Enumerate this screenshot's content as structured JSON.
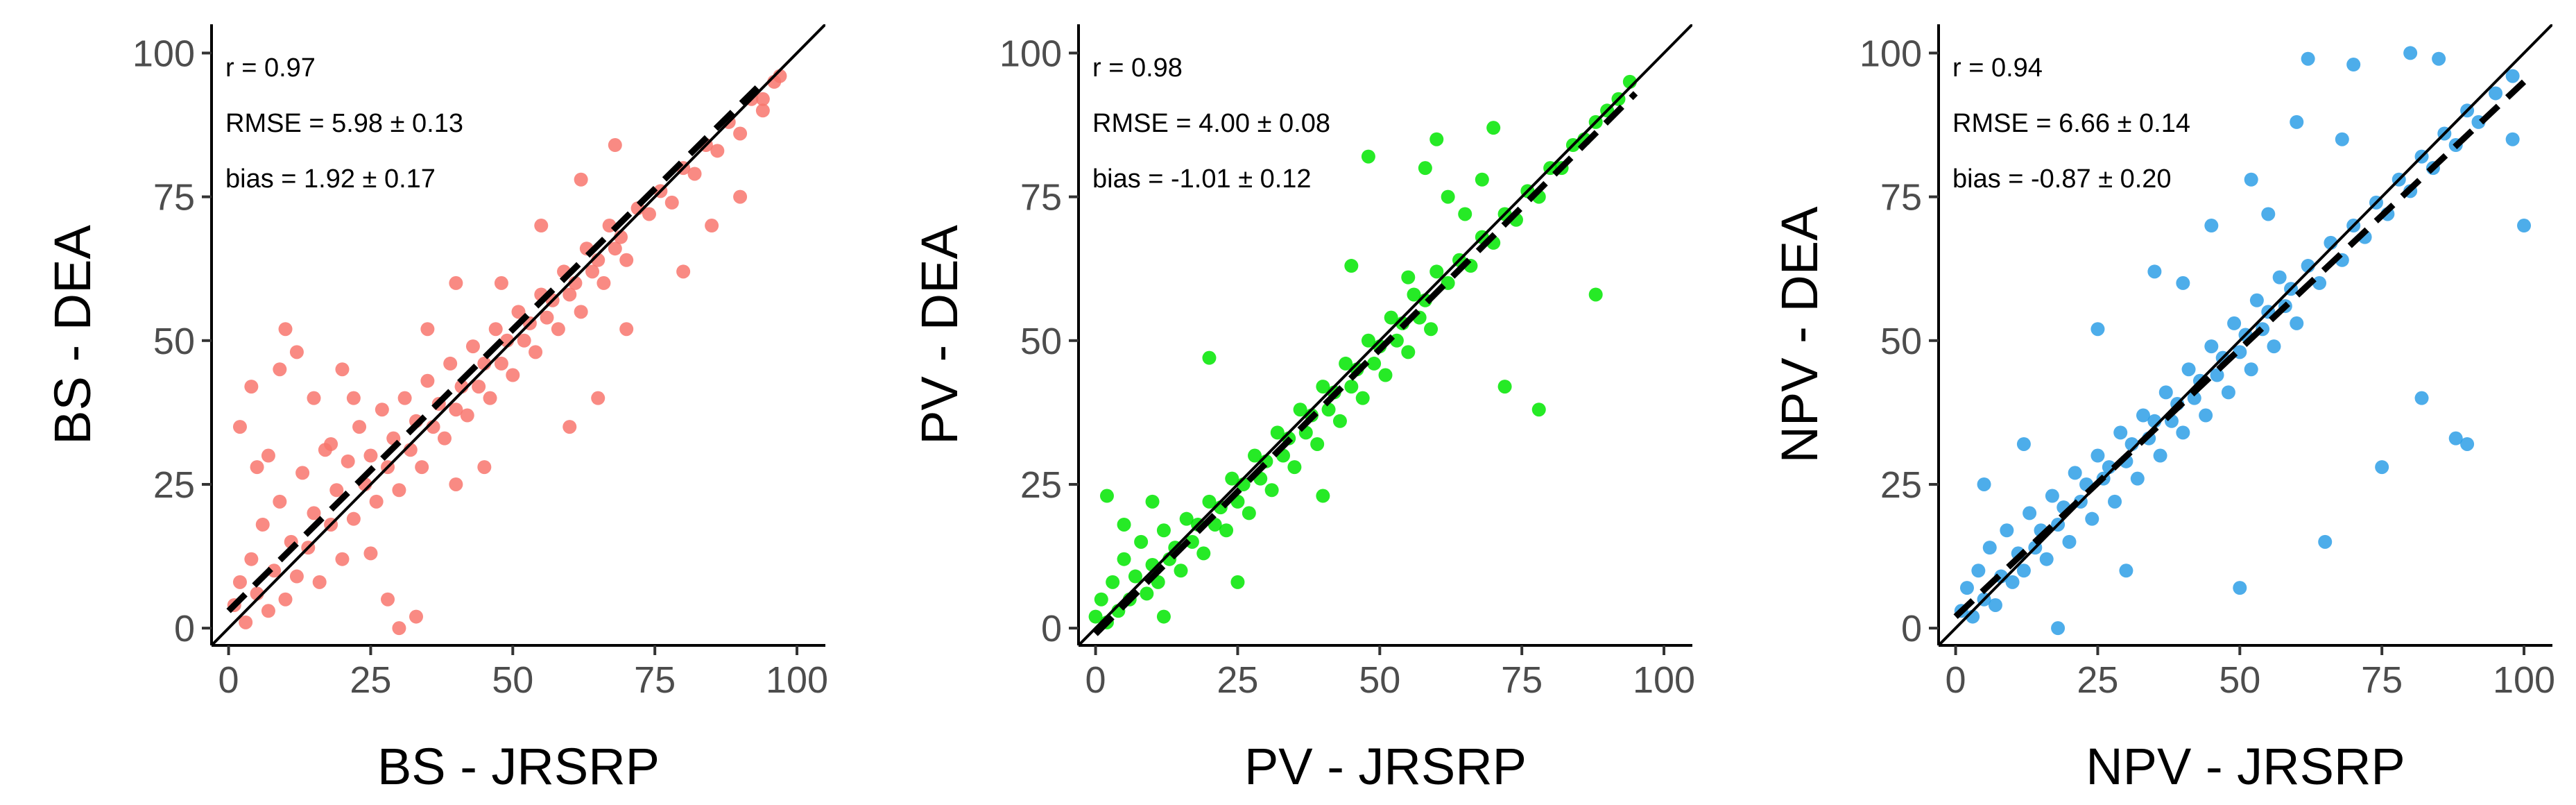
{
  "chart_data": [
    {
      "type": "scatter",
      "panel": "left",
      "xlabel": "BS - JRSRP",
      "ylabel": "BS - DEA",
      "xlim": [
        -3,
        105
      ],
      "ylim": [
        -3,
        105
      ],
      "xticks": [
        0,
        25,
        50,
        75,
        100
      ],
      "yticks": [
        0,
        25,
        50,
        75,
        100
      ],
      "point_color": "#F8766D",
      "stats": [
        "r = 0.97",
        "RMSE = 5.98 ± 0.13",
        "bias = 1.92 ± 0.17"
      ],
      "one_to_one_line": {
        "x": [
          -3,
          105
        ],
        "y": [
          -3,
          105
        ]
      },
      "fit_line": {
        "x": [
          0,
          93
        ],
        "y": [
          3.0,
          94.0
        ]
      },
      "points": [
        [
          1,
          4
        ],
        [
          2,
          8
        ],
        [
          3,
          1
        ],
        [
          4,
          12
        ],
        [
          5,
          6
        ],
        [
          6,
          18
        ],
        [
          7,
          3
        ],
        [
          8,
          10
        ],
        [
          9,
          22
        ],
        [
          10,
          5
        ],
        [
          11,
          15
        ],
        [
          12,
          9
        ],
        [
          13,
          27
        ],
        [
          14,
          14
        ],
        [
          15,
          20
        ],
        [
          16,
          8
        ],
        [
          17,
          31
        ],
        [
          18,
          18
        ],
        [
          19,
          24
        ],
        [
          20,
          12
        ],
        [
          21,
          29
        ],
        [
          22,
          19
        ],
        [
          23,
          35
        ],
        [
          24,
          25
        ],
        [
          25,
          30
        ],
        [
          26,
          22
        ],
        [
          27,
          38
        ],
        [
          28,
          28
        ],
        [
          29,
          33
        ],
        [
          30,
          24
        ],
        [
          31,
          40
        ],
        [
          32,
          31
        ],
        [
          33,
          36
        ],
        [
          34,
          28
        ],
        [
          35,
          43
        ],
        [
          36,
          35
        ],
        [
          37,
          39
        ],
        [
          38,
          33
        ],
        [
          39,
          46
        ],
        [
          40,
          38
        ],
        [
          41,
          42
        ],
        [
          42,
          37
        ],
        [
          43,
          49
        ],
        [
          44,
          42
        ],
        [
          45,
          46
        ],
        [
          46,
          40
        ],
        [
          47,
          52
        ],
        [
          48,
          46
        ],
        [
          49,
          50
        ],
        [
          50,
          44
        ],
        [
          51,
          55
        ],
        [
          52,
          50
        ],
        [
          53,
          53
        ],
        [
          54,
          48
        ],
        [
          55,
          58
        ],
        [
          56,
          54
        ],
        [
          57,
          57
        ],
        [
          58,
          52
        ],
        [
          59,
          62
        ],
        [
          60,
          58
        ],
        [
          61,
          60
        ],
        [
          62,
          55
        ],
        [
          63,
          66
        ],
        [
          64,
          62
        ],
        [
          65,
          64
        ],
        [
          66,
          60
        ],
        [
          67,
          70
        ],
        [
          68,
          66
        ],
        [
          69,
          68
        ],
        [
          70,
          64
        ],
        [
          72,
          73
        ],
        [
          74,
          72
        ],
        [
          76,
          76
        ],
        [
          78,
          74
        ],
        [
          80,
          80
        ],
        [
          82,
          79
        ],
        [
          84,
          84
        ],
        [
          86,
          83
        ],
        [
          88,
          88
        ],
        [
          90,
          86
        ],
        [
          92,
          92
        ],
        [
          94,
          90
        ],
        [
          96,
          95
        ],
        [
          2,
          35
        ],
        [
          4,
          42
        ],
        [
          7,
          30
        ],
        [
          9,
          45
        ],
        [
          12,
          48
        ],
        [
          5,
          28
        ],
        [
          15,
          40
        ],
        [
          10,
          52
        ],
        [
          20,
          45
        ],
        [
          25,
          13
        ],
        [
          30,
          0
        ],
        [
          33,
          2
        ],
        [
          28,
          5
        ],
        [
          40,
          25
        ],
        [
          45,
          28
        ],
        [
          60,
          35
        ],
        [
          65,
          40
        ],
        [
          70,
          52
        ],
        [
          80,
          62
        ],
        [
          85,
          70
        ],
        [
          90,
          75
        ],
        [
          94,
          92
        ],
        [
          97,
          96
        ],
        [
          62,
          78
        ],
        [
          68,
          84
        ],
        [
          55,
          70
        ],
        [
          48,
          60
        ],
        [
          35,
          52
        ],
        [
          40,
          60
        ],
        [
          22,
          40
        ],
        [
          18,
          32
        ]
      ]
    },
    {
      "type": "scatter",
      "panel": "middle",
      "xlabel": "PV - JRSRP",
      "ylabel": "PV - DEA",
      "xlim": [
        -3,
        105
      ],
      "ylim": [
        -3,
        105
      ],
      "xticks": [
        0,
        25,
        50,
        75,
        100
      ],
      "yticks": [
        0,
        25,
        50,
        75,
        100
      ],
      "point_color": "#00E600",
      "stats": [
        "r = 0.98",
        "RMSE = 4.00 ± 0.08",
        "bias = -1.01 ± 0.12"
      ],
      "one_to_one_line": {
        "x": [
          -3,
          105
        ],
        "y": [
          -3,
          105
        ]
      },
      "fit_line": {
        "x": [
          0,
          95
        ],
        "y": [
          -1.0,
          93.0
        ]
      },
      "points": [
        [
          0,
          2
        ],
        [
          1,
          5
        ],
        [
          2,
          1
        ],
        [
          3,
          8
        ],
        [
          4,
          3
        ],
        [
          5,
          12
        ],
        [
          6,
          5
        ],
        [
          7,
          9
        ],
        [
          8,
          15
        ],
        [
          9,
          6
        ],
        [
          10,
          11
        ],
        [
          11,
          8
        ],
        [
          12,
          17
        ],
        [
          13,
          12
        ],
        [
          14,
          14
        ],
        [
          15,
          10
        ],
        [
          16,
          19
        ],
        [
          17,
          15
        ],
        [
          18,
          18
        ],
        [
          19,
          13
        ],
        [
          20,
          22
        ],
        [
          21,
          18
        ],
        [
          22,
          21
        ],
        [
          23,
          17
        ],
        [
          24,
          26
        ],
        [
          25,
          22
        ],
        [
          26,
          25
        ],
        [
          27,
          20
        ],
        [
          28,
          30
        ],
        [
          29,
          26
        ],
        [
          30,
          29
        ],
        [
          31,
          24
        ],
        [
          32,
          34
        ],
        [
          33,
          30
        ],
        [
          34,
          33
        ],
        [
          35,
          28
        ],
        [
          36,
          38
        ],
        [
          37,
          34
        ],
        [
          38,
          37
        ],
        [
          39,
          32
        ],
        [
          40,
          42
        ],
        [
          41,
          38
        ],
        [
          42,
          41
        ],
        [
          43,
          36
        ],
        [
          44,
          46
        ],
        [
          45,
          42
        ],
        [
          46,
          45
        ],
        [
          47,
          40
        ],
        [
          48,
          50
        ],
        [
          49,
          46
        ],
        [
          50,
          49
        ],
        [
          51,
          44
        ],
        [
          52,
          54
        ],
        [
          53,
          50
        ],
        [
          54,
          53
        ],
        [
          55,
          48
        ],
        [
          56,
          58
        ],
        [
          57,
          54
        ],
        [
          58,
          57
        ],
        [
          59,
          52
        ],
        [
          60,
          62
        ],
        [
          62,
          60
        ],
        [
          64,
          64
        ],
        [
          66,
          63
        ],
        [
          68,
          68
        ],
        [
          70,
          67
        ],
        [
          72,
          72
        ],
        [
          74,
          71
        ],
        [
          76,
          76
        ],
        [
          78,
          75
        ],
        [
          80,
          80
        ],
        [
          82,
          80
        ],
        [
          84,
          84
        ],
        [
          86,
          85
        ],
        [
          88,
          88
        ],
        [
          90,
          90
        ],
        [
          92,
          92
        ],
        [
          94,
          95
        ],
        [
          20,
          47
        ],
        [
          10,
          22
        ],
        [
          5,
          18
        ],
        [
          2,
          23
        ],
        [
          12,
          2
        ],
        [
          25,
          8
        ],
        [
          40,
          23
        ],
        [
          45,
          63
        ],
        [
          48,
          82
        ],
        [
          60,
          85
        ],
        [
          62,
          75
        ],
        [
          72,
          42
        ],
        [
          78,
          38
        ],
        [
          88,
          58
        ],
        [
          55,
          61
        ],
        [
          58,
          80
        ],
        [
          65,
          72
        ],
        [
          68,
          78
        ],
        [
          70,
          87
        ]
      ]
    },
    {
      "type": "scatter",
      "panel": "right",
      "xlabel": "NPV - JRSRP",
      "ylabel": "NPV - DEA",
      "xlim": [
        -3,
        105
      ],
      "ylim": [
        -3,
        105
      ],
      "xticks": [
        0,
        25,
        50,
        75,
        100
      ],
      "yticks": [
        0,
        25,
        50,
        75,
        100
      ],
      "point_color": "#2E9FE6",
      "stats": [
        "r = 0.94",
        "RMSE = 6.66 ± 0.14",
        "bias = -0.87 ± 0.20"
      ],
      "one_to_one_line": {
        "x": [
          -3,
          105
        ],
        "y": [
          -3,
          105
        ]
      },
      "fit_line": {
        "x": [
          0,
          100
        ],
        "y": [
          2.0,
          95.0
        ]
      },
      "points": [
        [
          1,
          3
        ],
        [
          2,
          7
        ],
        [
          3,
          2
        ],
        [
          4,
          10
        ],
        [
          5,
          5
        ],
        [
          6,
          14
        ],
        [
          7,
          4
        ],
        [
          8,
          9
        ],
        [
          9,
          17
        ],
        [
          10,
          8
        ],
        [
          11,
          13
        ],
        [
          12,
          10
        ],
        [
          13,
          20
        ],
        [
          14,
          14
        ],
        [
          15,
          17
        ],
        [
          16,
          12
        ],
        [
          17,
          23
        ],
        [
          18,
          18
        ],
        [
          19,
          21
        ],
        [
          20,
          15
        ],
        [
          21,
          27
        ],
        [
          22,
          22
        ],
        [
          23,
          25
        ],
        [
          24,
          19
        ],
        [
          25,
          30
        ],
        [
          26,
          26
        ],
        [
          27,
          28
        ],
        [
          28,
          22
        ],
        [
          29,
          34
        ],
        [
          30,
          29
        ],
        [
          31,
          32
        ],
        [
          32,
          26
        ],
        [
          33,
          37
        ],
        [
          34,
          33
        ],
        [
          35,
          36
        ],
        [
          36,
          30
        ],
        [
          37,
          41
        ],
        [
          38,
          36
        ],
        [
          39,
          39
        ],
        [
          40,
          34
        ],
        [
          41,
          45
        ],
        [
          42,
          40
        ],
        [
          43,
          43
        ],
        [
          44,
          37
        ],
        [
          45,
          49
        ],
        [
          46,
          44
        ],
        [
          47,
          47
        ],
        [
          48,
          41
        ],
        [
          49,
          53
        ],
        [
          50,
          48
        ],
        [
          51,
          51
        ],
        [
          52,
          45
        ],
        [
          53,
          57
        ],
        [
          54,
          52
        ],
        [
          55,
          55
        ],
        [
          56,
          49
        ],
        [
          57,
          61
        ],
        [
          58,
          56
        ],
        [
          59,
          59
        ],
        [
          60,
          53
        ],
        [
          62,
          63
        ],
        [
          64,
          60
        ],
        [
          66,
          67
        ],
        [
          68,
          64
        ],
        [
          70,
          70
        ],
        [
          72,
          68
        ],
        [
          74,
          74
        ],
        [
          76,
          72
        ],
        [
          78,
          78
        ],
        [
          80,
          76
        ],
        [
          82,
          82
        ],
        [
          84,
          80
        ],
        [
          86,
          86
        ],
        [
          88,
          84
        ],
        [
          90,
          90
        ],
        [
          92,
          88
        ],
        [
          95,
          93
        ],
        [
          98,
          96
        ],
        [
          62,
          99
        ],
        [
          70,
          98
        ],
        [
          80,
          100
        ],
        [
          85,
          99
        ],
        [
          60,
          88
        ],
        [
          52,
          78
        ],
        [
          45,
          70
        ],
        [
          35,
          62
        ],
        [
          25,
          52
        ],
        [
          12,
          32
        ],
        [
          5,
          25
        ],
        [
          18,
          0
        ],
        [
          30,
          10
        ],
        [
          50,
          7
        ],
        [
          65,
          15
        ],
        [
          75,
          28
        ],
        [
          82,
          40
        ],
        [
          88,
          33
        ],
        [
          90,
          32
        ],
        [
          100,
          70
        ],
        [
          98,
          85
        ],
        [
          40,
          60
        ],
        [
          55,
          72
        ],
        [
          68,
          85
        ]
      ]
    }
  ]
}
